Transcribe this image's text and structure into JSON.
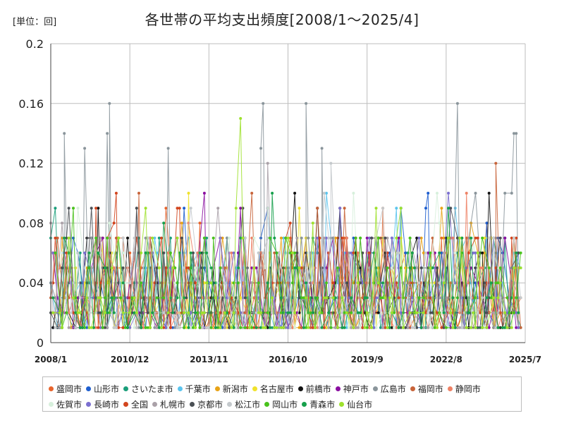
{
  "chart_data": {
    "type": "line",
    "title": "各世帯の平均支出頻度[2008/1～2025/4]",
    "unit_label": "[単位：回]",
    "y_tick_labels": [
      "0",
      "0.04",
      "0.08",
      "0.12",
      "0.16",
      "0.2"
    ],
    "y_ticks": [
      0,
      0.04,
      0.08,
      0.12,
      0.16,
      0.2
    ],
    "ylim": [
      0,
      0.2
    ],
    "x_tick_labels": [
      "2008/1",
      "2010/12",
      "2013/11",
      "2016/10",
      "2019/9",
      "2022/8",
      "2025/7"
    ],
    "x_ticks_month_index": [
      0,
      35,
      70,
      105,
      140,
      175,
      210
    ],
    "x_range_month_index": [
      0,
      210
    ],
    "grid": true,
    "legend_position": "bottom",
    "series": [
      {
        "name": "盛岡市",
        "color": "#e8642c",
        "seed": 1
      },
      {
        "name": "山形市",
        "color": "#1f5fcf",
        "seed": 2
      },
      {
        "name": "さいたま市",
        "color": "#1a9e7a",
        "seed": 3
      },
      {
        "name": "千葉市",
        "color": "#5bc4ee",
        "seed": 4
      },
      {
        "name": "新潟市",
        "color": "#e8a317",
        "seed": 5
      },
      {
        "name": "名古屋市",
        "color": "#f0e22b",
        "seed": 6
      },
      {
        "name": "前橋市",
        "color": "#111111",
        "seed": 7
      },
      {
        "name": "神戸市",
        "color": "#8a0ea0",
        "seed": 8
      },
      {
        "name": "広島市",
        "color": "#8a959b",
        "seed": 9
      },
      {
        "name": "福岡市",
        "color": "#c8643a",
        "seed": 10
      },
      {
        "name": "静岡市",
        "color": "#ee8266",
        "seed": 11
      },
      {
        "name": "佐賀市",
        "color": "#d7f0dc",
        "seed": 12
      },
      {
        "name": "長崎市",
        "color": "#7b6fd0",
        "seed": 13
      },
      {
        "name": "全国",
        "color": "#d2451e",
        "seed": 14
      },
      {
        "name": "札幌市",
        "color": "#aaa1a8",
        "seed": 15
      },
      {
        "name": "京都市",
        "color": "#4a4f54",
        "seed": 16
      },
      {
        "name": "松江市",
        "color": "#c4c9cc",
        "seed": 17
      },
      {
        "name": "岡山市",
        "color": "#49c21c",
        "seed": 18
      },
      {
        "name": "青森市",
        "color": "#17a04c",
        "seed": 19
      },
      {
        "name": "仙台市",
        "color": "#9ee12d",
        "seed": 20
      }
    ],
    "highlight_points": [
      {
        "series": "広島市",
        "x": 26,
        "y": 0.16
      },
      {
        "series": "広島市",
        "x": 113,
        "y": 0.16
      },
      {
        "series": "広島市",
        "x": 94,
        "y": 0.16
      },
      {
        "series": "広島市",
        "x": 180,
        "y": 0.16
      },
      {
        "series": "仙台市",
        "x": 84,
        "y": 0.15
      },
      {
        "series": "広島市",
        "x": 6,
        "y": 0.14
      },
      {
        "series": "広島市",
        "x": 25,
        "y": 0.14
      },
      {
        "series": "広島市",
        "x": 205,
        "y": 0.14
      },
      {
        "series": "広島市",
        "x": 206,
        "y": 0.14
      },
      {
        "series": "広島市",
        "x": 15,
        "y": 0.13
      },
      {
        "series": "広島市",
        "x": 52,
        "y": 0.13
      },
      {
        "series": "広島市",
        "x": 93,
        "y": 0.13
      },
      {
        "series": "広島市",
        "x": 120,
        "y": 0.13
      },
      {
        "series": "福岡市",
        "x": 197,
        "y": 0.12
      },
      {
        "series": "札幌市",
        "x": 96,
        "y": 0.12
      },
      {
        "series": "松江市",
        "x": 124,
        "y": 0.12
      },
      {
        "series": "山形市",
        "x": 167,
        "y": 0.1
      },
      {
        "series": "福岡市",
        "x": 39,
        "y": 0.1
      },
      {
        "series": "千葉市",
        "x": 122,
        "y": 0.1
      }
    ]
  }
}
